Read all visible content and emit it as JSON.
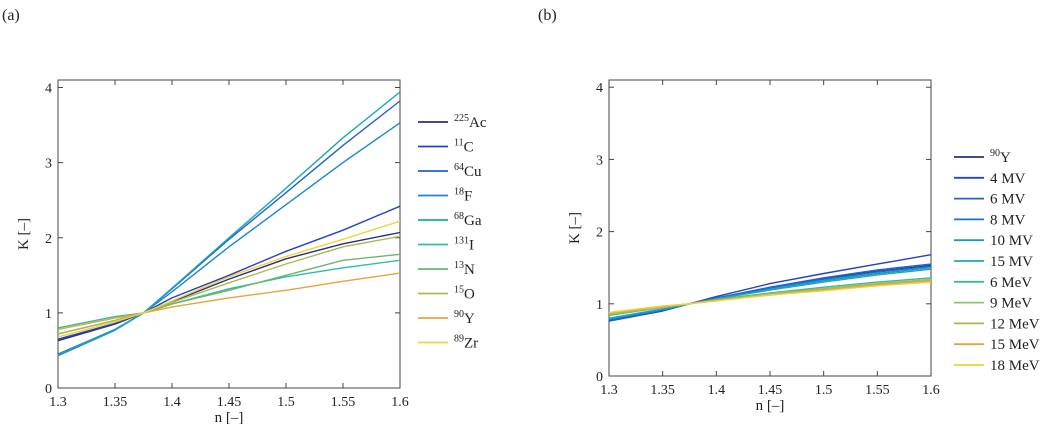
{
  "chart_data": [
    {
      "panel_label": "(a)",
      "type": "line",
      "xlabel": "n [–]",
      "ylabel": "K [–]",
      "xlim": [
        1.3,
        1.6
      ],
      "ylim": [
        0,
        4.1
      ],
      "xticks": [
        1.3,
        1.35,
        1.4,
        1.45,
        1.5,
        1.55,
        1.6
      ],
      "xtick_labels": [
        "1.3",
        "1.35",
        "1.4",
        "1.45",
        "1.5",
        "1.55",
        "1.6"
      ],
      "yticks": [
        0,
        1,
        2,
        3,
        4
      ],
      "ytick_labels": [
        "0",
        "1",
        "2",
        "3",
        "4"
      ],
      "legend_position": "right",
      "series": [
        {
          "sup": "225",
          "base": "Ac",
          "color": "#2b2f7a",
          "x": [
            1.3,
            1.35,
            1.375,
            1.4,
            1.45,
            1.5,
            1.55,
            1.6
          ],
          "values": [
            0.63,
            0.85,
            1.0,
            1.15,
            1.45,
            1.72,
            1.92,
            2.07
          ]
        },
        {
          "sup": "11",
          "base": "C",
          "color": "#2441c6",
          "x": [
            1.3,
            1.35,
            1.375,
            1.4,
            1.45,
            1.5,
            1.55,
            1.6
          ],
          "values": [
            0.65,
            0.86,
            1.0,
            1.2,
            1.5,
            1.82,
            2.1,
            2.42
          ]
        },
        {
          "sup": "64",
          "base": "Cu",
          "color": "#2660d0",
          "x": [
            1.3,
            1.35,
            1.375,
            1.4,
            1.45,
            1.5,
            1.55,
            1.6
          ],
          "values": [
            0.45,
            0.78,
            1.0,
            1.32,
            1.98,
            2.6,
            3.23,
            3.82
          ]
        },
        {
          "sup": "18",
          "base": "F",
          "color": "#1c86cf",
          "x": [
            1.3,
            1.35,
            1.375,
            1.4,
            1.45,
            1.5,
            1.55,
            1.6
          ],
          "values": [
            0.43,
            0.77,
            1.0,
            1.28,
            1.88,
            2.44,
            3.0,
            3.53
          ]
        },
        {
          "sup": "68",
          "base": "Ga",
          "color": "#1aa8b2",
          "x": [
            1.3,
            1.35,
            1.375,
            1.4,
            1.45,
            1.5,
            1.55,
            1.6
          ],
          "values": [
            0.44,
            0.78,
            1.0,
            1.33,
            2.0,
            2.66,
            3.33,
            3.94
          ]
        },
        {
          "sup": "131",
          "base": "I",
          "color": "#2bbfa9",
          "x": [
            1.3,
            1.35,
            1.375,
            1.4,
            1.45,
            1.5,
            1.55,
            1.6
          ],
          "values": [
            0.8,
            0.95,
            1.0,
            1.12,
            1.32,
            1.48,
            1.6,
            1.7
          ]
        },
        {
          "sup": "13",
          "base": "N",
          "color": "#6db56f",
          "x": [
            1.3,
            1.35,
            1.375,
            1.4,
            1.45,
            1.5,
            1.55,
            1.6
          ],
          "values": [
            0.72,
            0.9,
            1.0,
            1.12,
            1.3,
            1.5,
            1.7,
            1.78
          ]
        },
        {
          "sup": "15",
          "base": "O",
          "color": "#a6bb4f",
          "x": [
            1.3,
            1.35,
            1.375,
            1.4,
            1.45,
            1.5,
            1.55,
            1.6
          ],
          "values": [
            0.72,
            0.9,
            1.0,
            1.14,
            1.4,
            1.65,
            1.88,
            2.02
          ]
        },
        {
          "sup": "90",
          "base": "Y",
          "color": "#e8a23b",
          "x": [
            1.3,
            1.35,
            1.375,
            1.4,
            1.45,
            1.5,
            1.55,
            1.6
          ],
          "values": [
            0.78,
            0.93,
            1.0,
            1.08,
            1.2,
            1.3,
            1.42,
            1.53
          ]
        },
        {
          "sup": "89",
          "base": "Zr",
          "color": "#f1d23a",
          "x": [
            1.3,
            1.35,
            1.375,
            1.4,
            1.45,
            1.5,
            1.55,
            1.6
          ],
          "values": [
            0.68,
            0.88,
            1.0,
            1.16,
            1.48,
            1.75,
            1.98,
            2.22
          ]
        }
      ]
    },
    {
      "panel_label": "(b)",
      "type": "line",
      "xlabel": "n [–]",
      "ylabel": "K [–]",
      "xlim": [
        1.3,
        1.6
      ],
      "ylim": [
        0,
        4.1
      ],
      "xticks": [
        1.3,
        1.35,
        1.4,
        1.45,
        1.5,
        1.55,
        1.6
      ],
      "xtick_labels": [
        "1.3",
        "1.35",
        "1.4",
        "1.45",
        "1.5",
        "1.55",
        "1.6"
      ],
      "yticks": [
        0,
        1,
        2,
        3,
        4
      ],
      "ytick_labels": [
        "0",
        "1",
        "2",
        "3",
        "4"
      ],
      "legend_position": "right",
      "series": [
        {
          "sup": "90",
          "base": "Y",
          "color": "#2b2f7a",
          "x": [
            1.3,
            1.35,
            1.375,
            1.4,
            1.45,
            1.5,
            1.55,
            1.6
          ],
          "values": [
            0.78,
            0.92,
            1.0,
            1.08,
            1.22,
            1.35,
            1.45,
            1.53
          ]
        },
        {
          "sup": "",
          "base": "4 MV",
          "color": "#2441c6",
          "x": [
            1.3,
            1.35,
            1.375,
            1.4,
            1.45,
            1.5,
            1.55,
            1.6
          ],
          "values": [
            0.76,
            0.9,
            1.0,
            1.1,
            1.28,
            1.42,
            1.55,
            1.68
          ]
        },
        {
          "sup": "",
          "base": "6 MV",
          "color": "#2660d0",
          "x": [
            1.3,
            1.35,
            1.375,
            1.4,
            1.45,
            1.5,
            1.55,
            1.6
          ],
          "values": [
            0.77,
            0.91,
            1.0,
            1.08,
            1.23,
            1.36,
            1.47,
            1.55
          ]
        },
        {
          "sup": "",
          "base": "8 MV",
          "color": "#1c6fc9",
          "x": [
            1.3,
            1.35,
            1.375,
            1.4,
            1.45,
            1.5,
            1.55,
            1.6
          ],
          "values": [
            0.78,
            0.92,
            1.0,
            1.08,
            1.22,
            1.34,
            1.44,
            1.52
          ]
        },
        {
          "sup": "",
          "base": "10 MV",
          "color": "#1a95cf",
          "x": [
            1.3,
            1.35,
            1.375,
            1.4,
            1.45,
            1.5,
            1.55,
            1.6
          ],
          "values": [
            0.79,
            0.92,
            1.0,
            1.07,
            1.2,
            1.32,
            1.42,
            1.5
          ]
        },
        {
          "sup": "",
          "base": "15 MV",
          "color": "#1aa8b2",
          "x": [
            1.3,
            1.35,
            1.375,
            1.4,
            1.45,
            1.5,
            1.55,
            1.6
          ],
          "values": [
            0.8,
            0.93,
            1.0,
            1.07,
            1.19,
            1.3,
            1.4,
            1.48
          ]
        },
        {
          "sup": "",
          "base": "6 MeV",
          "color": "#3dba8f",
          "x": [
            1.3,
            1.35,
            1.375,
            1.4,
            1.45,
            1.5,
            1.55,
            1.6
          ],
          "values": [
            0.84,
            0.95,
            1.0,
            1.06,
            1.15,
            1.23,
            1.3,
            1.36
          ]
        },
        {
          "sup": "",
          "base": "9 MeV",
          "color": "#8fbf78",
          "x": [
            1.3,
            1.35,
            1.375,
            1.4,
            1.45,
            1.5,
            1.55,
            1.6
          ],
          "values": [
            0.85,
            0.95,
            1.0,
            1.05,
            1.14,
            1.21,
            1.28,
            1.34
          ]
        },
        {
          "sup": "",
          "base": "12 MeV",
          "color": "#b8b24c",
          "x": [
            1.3,
            1.35,
            1.375,
            1.4,
            1.45,
            1.5,
            1.55,
            1.6
          ],
          "values": [
            0.86,
            0.96,
            1.0,
            1.05,
            1.13,
            1.2,
            1.27,
            1.32
          ]
        },
        {
          "sup": "",
          "base": "15 MeV",
          "color": "#e8a23b",
          "x": [
            1.3,
            1.35,
            1.375,
            1.4,
            1.45,
            1.5,
            1.55,
            1.6
          ],
          "values": [
            0.87,
            0.96,
            1.0,
            1.05,
            1.12,
            1.19,
            1.26,
            1.31
          ]
        },
        {
          "sup": "",
          "base": "18 MeV",
          "color": "#f1d23a",
          "x": [
            1.3,
            1.35,
            1.375,
            1.4,
            1.45,
            1.5,
            1.55,
            1.6
          ],
          "values": [
            0.88,
            0.97,
            1.0,
            1.04,
            1.12,
            1.18,
            1.25,
            1.3
          ]
        }
      ]
    }
  ]
}
